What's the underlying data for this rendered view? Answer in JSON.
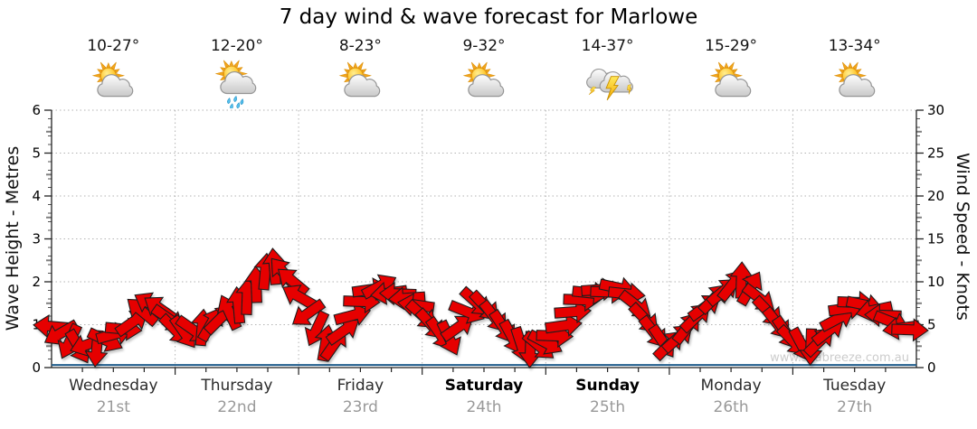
{
  "title": "7 day wind & wave forecast for Marlowe",
  "watermark": "www.seabreeze.com.au",
  "days": [
    {
      "name": "Wednesday",
      "date": "21st",
      "temp": "10-27°",
      "icon": "partly-cloudy",
      "bold": false
    },
    {
      "name": "Thursday",
      "date": "22nd",
      "temp": "12-20°",
      "icon": "showers",
      "bold": false
    },
    {
      "name": "Friday",
      "date": "23rd",
      "temp": "8-23°",
      "icon": "partly-cloudy",
      "bold": false
    },
    {
      "name": "Saturday",
      "date": "24th",
      "temp": "9-32°",
      "icon": "partly-cloudy",
      "bold": true
    },
    {
      "name": "Sunday",
      "date": "25th",
      "temp": "14-37°",
      "icon": "thunderstorm",
      "bold": true
    },
    {
      "name": "Monday",
      "date": "26th",
      "temp": "15-29°",
      "icon": "partly-cloudy",
      "bold": false
    },
    {
      "name": "Tuesday",
      "date": "27th",
      "temp": "13-34°",
      "icon": "partly-cloudy",
      "bold": false
    }
  ],
  "colors": {
    "arrow": "#e60000",
    "arrow_outline": "#1f1f1f",
    "wave_line": "#1f5c8b",
    "grid": "#b3b3b3",
    "axis": "#222222",
    "day_text": "#2b2b2b",
    "date_text": "#999999",
    "watermark_text": "#cccccc"
  },
  "chart_data": {
    "type": "line",
    "title": "7 day wind & wave forecast for Marlowe",
    "left_axis": {
      "label": "Wave Height - Metres",
      "range": [
        0,
        6
      ],
      "ticks": [
        0,
        1,
        2,
        3,
        4,
        5,
        6
      ]
    },
    "right_axis": {
      "label": "Wind Speed - Knots",
      "range": [
        0,
        30
      ],
      "ticks": [
        0,
        5,
        10,
        15,
        20,
        25,
        30
      ]
    },
    "x_axis": {
      "unit": "hours",
      "range": [
        0,
        168
      ],
      "tick_interval_hours": 6,
      "day_boundaries_hours": [
        24,
        48,
        72,
        96,
        120,
        144
      ]
    },
    "grid": {
      "horizontal_dotted_every_knots": 5,
      "vertical_dotted_at_day_boundaries": true
    },
    "legend": "none",
    "watermark": "www.seabreeze.com.au",
    "series": [
      {
        "name": "Wind speed and direction",
        "units": "knots",
        "marker": "red direction arrow",
        "point_format": [
          "hours_from_wednesday_0000",
          "speed_knots",
          "arrow_rotation_deg_cw_0_is_east"
        ],
        "points": [
          [
            0,
            4.8,
            185
          ],
          [
            1.75,
            4.0,
            150
          ],
          [
            3.5,
            3.0,
            115
          ],
          [
            5.25,
            2.4,
            60
          ],
          [
            7,
            2.7,
            160
          ],
          [
            8.75,
            2.2,
            95
          ],
          [
            10.5,
            3.2,
            25
          ],
          [
            12.25,
            3.9,
            -15
          ],
          [
            14,
            4.5,
            5
          ],
          [
            15.75,
            5.3,
            -35
          ],
          [
            17.5,
            6.6,
            -140
          ],
          [
            19.25,
            7.4,
            -150
          ],
          [
            21,
            6.9,
            -145
          ],
          [
            22.75,
            5.7,
            35
          ],
          [
            24,
            4.4,
            45
          ],
          [
            25.75,
            4.1,
            55
          ],
          [
            27.5,
            4.4,
            35
          ],
          [
            29.25,
            4.7,
            -85
          ],
          [
            31,
            5.1,
            -60
          ],
          [
            32.75,
            5.7,
            -45
          ],
          [
            34.5,
            6.5,
            -115
          ],
          [
            36.25,
            7.3,
            -95
          ],
          [
            38,
            8.3,
            -88
          ],
          [
            39.75,
            9.7,
            -92
          ],
          [
            41.5,
            11.2,
            -85
          ],
          [
            43.25,
            11.8,
            -95
          ],
          [
            45,
            11.1,
            -130
          ],
          [
            46.75,
            10.1,
            -140
          ],
          [
            48,
            8.3,
            -150
          ],
          [
            49.75,
            6.3,
            145
          ],
          [
            51.5,
            4.5,
            115
          ],
          [
            53.25,
            2.9,
            -80
          ],
          [
            55,
            2.8,
            -55
          ],
          [
            56.75,
            4.3,
            -35
          ],
          [
            58.5,
            6.1,
            -15
          ],
          [
            60.25,
            7.7,
            2
          ],
          [
            62,
            9.1,
            -8
          ],
          [
            63.75,
            9.5,
            -28
          ],
          [
            65.5,
            8.7,
            172
          ],
          [
            67.25,
            8.6,
            182
          ],
          [
            69,
            8.1,
            176
          ],
          [
            70.75,
            7.3,
            188
          ],
          [
            72,
            6.1,
            42
          ],
          [
            73.75,
            5.0,
            48
          ],
          [
            75.5,
            3.9,
            55
          ],
          [
            77.25,
            3.4,
            65
          ],
          [
            79,
            4.7,
            -35
          ],
          [
            80.75,
            6.5,
            22
          ],
          [
            82.5,
            7.6,
            42
          ],
          [
            84.25,
            7.1,
            47
          ],
          [
            86,
            5.9,
            52
          ],
          [
            87.75,
            4.7,
            57
          ],
          [
            89.5,
            3.5,
            62
          ],
          [
            91.25,
            2.6,
            72
          ],
          [
            93,
            2.1,
            92
          ],
          [
            94.75,
            2.5,
            40
          ],
          [
            96,
            2.9,
            28
          ],
          [
            97.75,
            3.7,
            2
          ],
          [
            99.5,
            4.9,
            -8
          ],
          [
            101.25,
            6.5,
            -4
          ],
          [
            103,
            7.9,
            2
          ],
          [
            104.75,
            8.7,
            6
          ],
          [
            106.5,
            9.1,
            -4
          ],
          [
            108.25,
            8.8,
            2
          ],
          [
            110,
            9.3,
            12
          ],
          [
            111.75,
            8.6,
            6
          ],
          [
            113.5,
            7.3,
            38
          ],
          [
            115.25,
            5.7,
            46
          ],
          [
            117,
            4.1,
            52
          ],
          [
            118.75,
            3.0,
            56
          ],
          [
            120,
            2.7,
            -45
          ],
          [
            121.75,
            3.5,
            -42
          ],
          [
            123.5,
            4.7,
            -52
          ],
          [
            125.25,
            5.9,
            -44
          ],
          [
            127,
            7.1,
            -36
          ],
          [
            128.75,
            8.1,
            -46
          ],
          [
            130.5,
            8.9,
            -40
          ],
          [
            132.25,
            9.7,
            -52
          ],
          [
            134,
            10.2,
            -88
          ],
          [
            135.75,
            9.3,
            -60
          ],
          [
            137.5,
            8.1,
            38
          ],
          [
            139.25,
            6.5,
            46
          ],
          [
            141,
            5.1,
            52
          ],
          [
            142.75,
            4.0,
            56
          ],
          [
            144,
            3.1,
            46
          ],
          [
            145.75,
            2.6,
            62
          ],
          [
            147.5,
            2.4,
            92
          ],
          [
            149.25,
            3.1,
            -45
          ],
          [
            151,
            4.3,
            -38
          ],
          [
            152.75,
            5.7,
            -28
          ],
          [
            154.5,
            6.9,
            -8
          ],
          [
            156.25,
            7.6,
            2
          ],
          [
            158,
            7.3,
            12
          ],
          [
            159.75,
            6.7,
            168
          ],
          [
            161.5,
            6.1,
            182
          ],
          [
            163.25,
            5.3,
            22
          ],
          [
            165,
            4.6,
            172
          ],
          [
            166.75,
            4.4,
            2
          ]
        ]
      },
      {
        "name": "Wave height",
        "units": "metres",
        "marker": "flat blue line",
        "constant_value_m": 0.05
      }
    ]
  }
}
